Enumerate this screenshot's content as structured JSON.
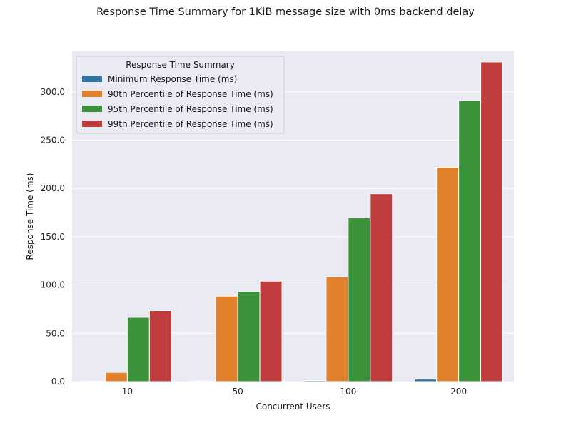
{
  "chart_data": {
    "type": "bar",
    "title": "Response Time Summary for 1KiB message size with 0ms backend delay",
    "xlabel": "Concurrent Users",
    "ylabel": "Response Time (ms)",
    "categories": [
      "10",
      "50",
      "100",
      "200"
    ],
    "ylim": [
      0,
      342
    ],
    "yticks": [
      0,
      50,
      100,
      150,
      200,
      250,
      300
    ],
    "ytick_labels": [
      "0.0",
      "50.0",
      "100.0",
      "150.0",
      "200.0",
      "250.0",
      "300.0"
    ],
    "grid": true,
    "legend": {
      "title": "Response Time Summary",
      "placement": "upper-left"
    },
    "series": [
      {
        "name": "Minimum Response Time (ms)",
        "color": "#3274a1",
        "values": [
          0.3,
          0.8,
          1.0,
          2.5
        ]
      },
      {
        "name": "90th Percentile of Response Time (ms)",
        "color": "#e1812c",
        "values": [
          9.5,
          88.5,
          108.5,
          222.0
        ]
      },
      {
        "name": "95th Percentile of Response Time (ms)",
        "color": "#3a923a",
        "values": [
          66.5,
          93.5,
          169.5,
          291.0
        ]
      },
      {
        "name": "99th Percentile of Response Time (ms)",
        "color": "#c03d3e",
        "values": [
          73.5,
          104.0,
          194.5,
          331.0
        ]
      }
    ]
  }
}
